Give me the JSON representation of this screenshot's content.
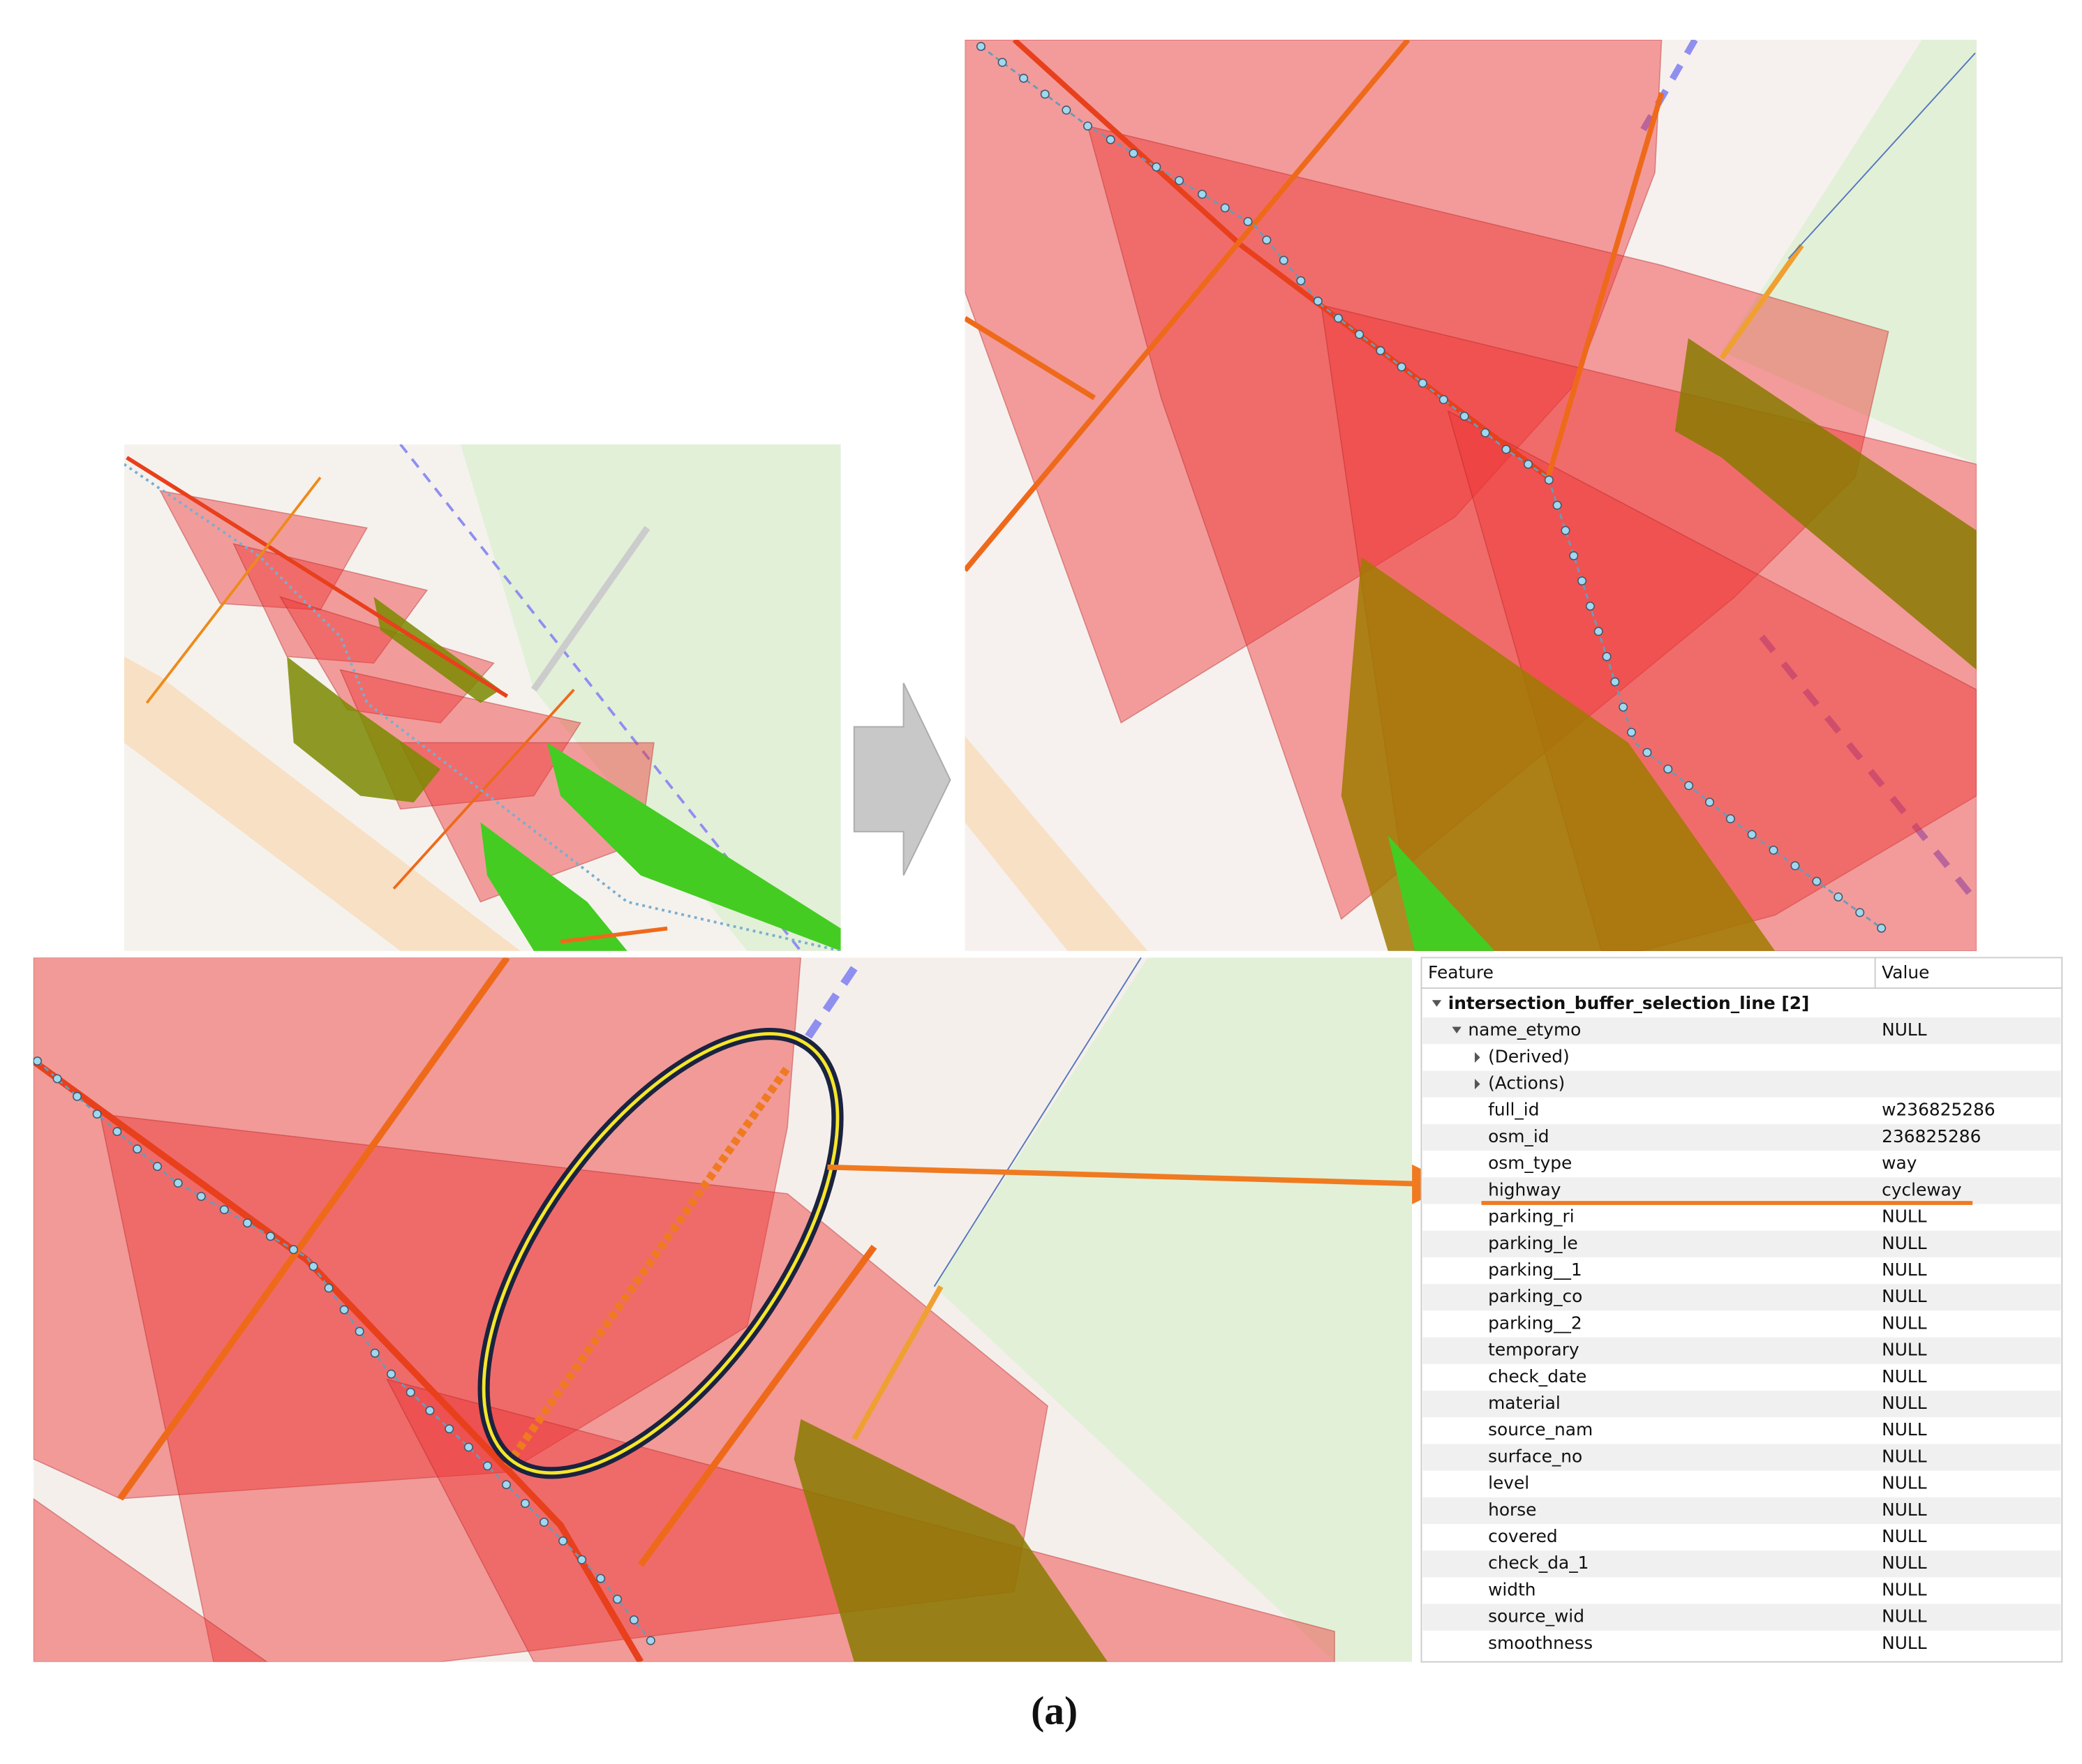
{
  "table": {
    "columns": [
      "Feature",
      "Value"
    ],
    "rows": [
      {
        "feature": "intersection_buffer_selection_line  [2]"
      },
      {
        "feature": "name_etymo",
        "value": "NULL"
      },
      {
        "feature": "(Derived)"
      },
      {
        "feature": "(Actions)"
      },
      {
        "feature": "full_id",
        "value": "w236825286"
      },
      {
        "feature": "osm_id",
        "value": "236825286"
      },
      {
        "feature": "osm_type",
        "value": "way"
      },
      {
        "feature": "highway",
        "value": "cycleway"
      },
      {
        "feature": "parking_ri",
        "value": "NULL"
      },
      {
        "feature": "parking_le",
        "value": "NULL"
      },
      {
        "feature": "parking__1",
        "value": "NULL"
      },
      {
        "feature": "parking_co",
        "value": "NULL"
      },
      {
        "feature": "parking__2",
        "value": "NULL"
      },
      {
        "feature": "temporary",
        "value": "NULL"
      },
      {
        "feature": "check_date",
        "value": "NULL"
      },
      {
        "feature": "material",
        "value": "NULL"
      },
      {
        "feature": "source_nam",
        "value": "NULL"
      },
      {
        "feature": "surface_no",
        "value": "NULL"
      },
      {
        "feature": "level",
        "value": "NULL"
      },
      {
        "feature": "horse",
        "value": "NULL"
      },
      {
        "feature": "covered",
        "value": "NULL"
      },
      {
        "feature": "check_da_1",
        "value": "NULL"
      },
      {
        "feature": "width",
        "value": "NULL"
      },
      {
        "feature": "source_wid",
        "value": "NULL"
      },
      {
        "feature": "smoothness",
        "value": "NULL"
      }
    ]
  },
  "caption": "(a)"
}
